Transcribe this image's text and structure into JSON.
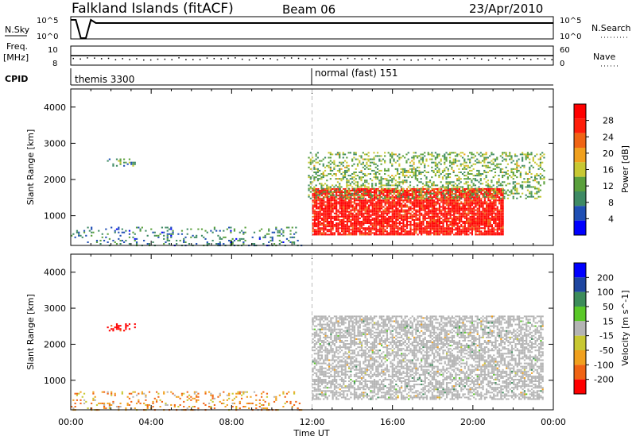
{
  "header": {
    "station": "Falkland Islands (fitACF)",
    "beam": "Beam 06",
    "date": "23/Apr/2010"
  },
  "strips": {
    "nsky_label": "N.Sky",
    "nsky_ticks": [
      "10^5",
      "10^0"
    ],
    "nsearch_label": "N.Search",
    "nsearch_ticks": [
      "10^5",
      "10^0"
    ],
    "freq_label_1": "Freq.",
    "freq_label_2": "[MHz]",
    "freq_ticks": [
      "10",
      "8"
    ],
    "nave_label": "Nave",
    "nave_ticks": [
      "60",
      "0"
    ],
    "cpid_label": "CPID",
    "cpid_modes": [
      "themis 3300",
      "normal (fast) 151"
    ]
  },
  "colors": {
    "power_scale": [
      "#0000ff",
      "#1f4fb4",
      "#3e8a64",
      "#5aa03c",
      "#c8c832",
      "#f0a01e",
      "#f06414",
      "#ff1e0a",
      "#ff0000"
    ],
    "velocity_scale": [
      "#0000ff",
      "#1e46a0",
      "#3c8c5a",
      "#5ac828",
      "#b4b4b4",
      "#c8c832",
      "#f0a01e",
      "#f06414",
      "#ff0000"
    ],
    "ground_scatter": "#b4b4b4"
  },
  "chart_data": [
    {
      "type": "heatmap",
      "panel": "power",
      "ylabel": "Slant Range [km]",
      "xlim": [
        "00:00",
        "24:00"
      ],
      "ylim": [
        180,
        4500
      ],
      "y_ticks": [
        "4000",
        "3000",
        "2000",
        "1000"
      ],
      "colorbar_label": "Power [dB]",
      "colorbar_ticks": [
        "28",
        "24",
        "20",
        "16",
        "12",
        "8",
        "4"
      ],
      "colorbar_range": [
        0,
        30
      ],
      "regions": [
        {
          "t_start": 0.0,
          "t_end": 11.5,
          "range_km": [
            200,
            700
          ],
          "level_db": 8
        },
        {
          "t_start": 1.8,
          "t_end": 3.2,
          "range_km": [
            2400,
            2600
          ],
          "level_db": 10
        },
        {
          "t_start": 12.0,
          "t_end": 21.5,
          "range_km": [
            500,
            1800
          ],
          "level_db": 27
        },
        {
          "t_start": 11.8,
          "t_end": 23.5,
          "range_km": [
            1500,
            2800
          ],
          "level_db": 12
        }
      ]
    },
    {
      "type": "heatmap",
      "panel": "velocity",
      "ylabel": "Slant Range [km]",
      "xlabel": "Time UT",
      "xlim": [
        "00:00",
        "24:00"
      ],
      "ylim": [
        180,
        4500
      ],
      "x_ticks": [
        "00:00",
        "04:00",
        "08:00",
        "12:00",
        "16:00",
        "20:00",
        "00:00"
      ],
      "y_ticks": [
        "4000",
        "3000",
        "2000",
        "1000"
      ],
      "colorbar_label": "Velocity [m s^-1]",
      "colorbar_ticks": [
        "200",
        "100",
        "50",
        "15",
        "-15",
        "-50",
        "-100",
        "-200"
      ],
      "regions": [
        {
          "t_start": 0.0,
          "t_end": 11.5,
          "range_km": [
            200,
            700
          ],
          "velocity": -60
        },
        {
          "t_start": 1.8,
          "t_end": 3.2,
          "range_km": [
            2400,
            2600
          ],
          "velocity": -200
        },
        {
          "t_start": 12.0,
          "t_end": 23.5,
          "range_km": [
            500,
            2800
          ],
          "velocity": 0,
          "ground_scatter": true
        }
      ]
    }
  ]
}
